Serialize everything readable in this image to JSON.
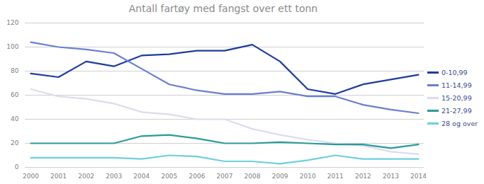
{
  "chart_data": {
    "type": "line",
    "title": "Antall fartøy med fangst over ett tonn",
    "x": [
      2000,
      2001,
      2002,
      2003,
      2004,
      2005,
      2006,
      2007,
      2008,
      2009,
      2010,
      2011,
      2012,
      2013,
      2014
    ],
    "series": [
      {
        "name": "0-10,99",
        "color": "#1f3c9e",
        "values": [
          78,
          75,
          88,
          84,
          93,
          94,
          97,
          97,
          102,
          88,
          65,
          61,
          69,
          73,
          77
        ]
      },
      {
        "name": "11-14,99",
        "color": "#6a7fd0",
        "values": [
          104,
          100,
          98,
          95,
          82,
          69,
          64,
          61,
          61,
          63,
          59,
          59,
          52,
          48,
          45
        ]
      },
      {
        "name": "15-20,99",
        "color": "#dcdcf0",
        "values": [
          65,
          59,
          57,
          53,
          46,
          44,
          40,
          40,
          32,
          27,
          23,
          20,
          18,
          13,
          11
        ]
      },
      {
        "name": "21-27,99",
        "color": "#2a9a98",
        "values": [
          20,
          20,
          20,
          20,
          26,
          27,
          24,
          20,
          20,
          21,
          20,
          19,
          19,
          16,
          19
        ]
      },
      {
        "name": "28 og over",
        "color": "#6fcfdc",
        "values": [
          8,
          8,
          8,
          8,
          7,
          10,
          9,
          5,
          5,
          3,
          6,
          10,
          7,
          7,
          7
        ]
      }
    ],
    "xlim": [
      2000,
      2014
    ],
    "xticks": [
      2000,
      2001,
      2002,
      2003,
      2004,
      2005,
      2006,
      2007,
      2008,
      2009,
      2010,
      2011,
      2012,
      2013,
      2014
    ],
    "ylim": [
      0,
      120
    ],
    "yticks": [
      0,
      20,
      40,
      60,
      80,
      100,
      120
    ],
    "grid": true,
    "legend": "right"
  }
}
